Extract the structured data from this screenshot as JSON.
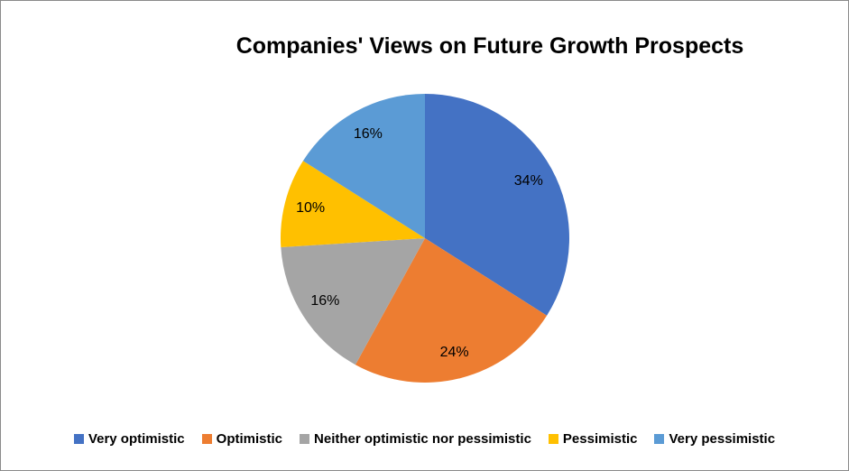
{
  "chart_data": {
    "type": "pie",
    "title": "Companies' Views on Future Growth Prospects",
    "categories": [
      "Very optimistic",
      "Optimistic",
      "Neither optimistic nor pessimistic",
      "Pessimistic",
      "Very pessimistic"
    ],
    "values": [
      34,
      24,
      16,
      10,
      16
    ],
    "data_labels": [
      "34%",
      "24%",
      "16%",
      "10%",
      "16%"
    ],
    "colors": [
      "#4472C4",
      "#ED7D31",
      "#A5A5A5",
      "#FFC000",
      "#5B9BD5"
    ],
    "start_angle_deg": 0,
    "direction": "clockwise",
    "legend_position": "bottom",
    "label_text_color": "#000000",
    "title_text_color": "#000000",
    "background_color": "#FFFFFF",
    "border_color": "#8A8A8A"
  }
}
